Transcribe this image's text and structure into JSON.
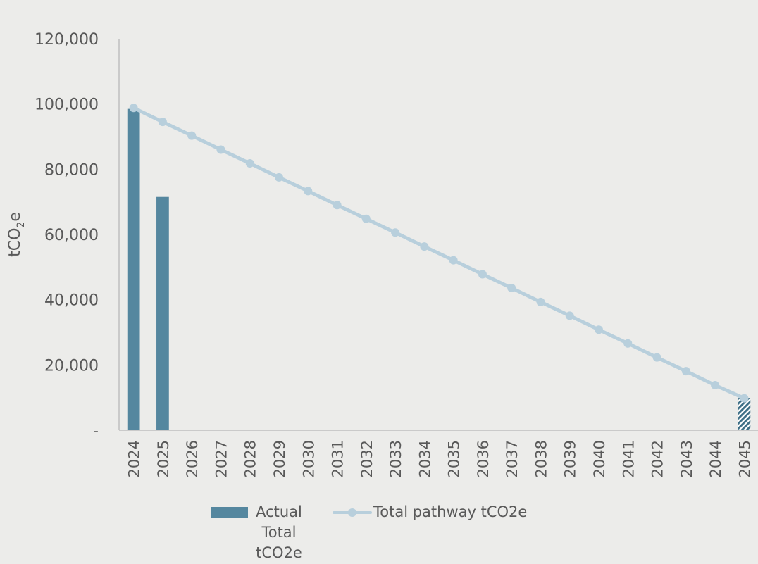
{
  "chart_data": {
    "type": "bar",
    "ylabel": "tCO",
    "ylabel_subscript": "2",
    "ylabel_suffix": "e",
    "ylim": [
      0,
      120000
    ],
    "yticks": [
      {
        "value": 0,
        "label": "-"
      },
      {
        "value": 20000,
        "label": "20,000"
      },
      {
        "value": 40000,
        "label": "40,000"
      },
      {
        "value": 60000,
        "label": "60,000"
      },
      {
        "value": 80000,
        "label": "80,000"
      },
      {
        "value": 100000,
        "label": "100,000"
      },
      {
        "value": 120000,
        "label": "120,000"
      }
    ],
    "categories": [
      "2024",
      "2025",
      "2026",
      "2027",
      "2028",
      "2029",
      "2030",
      "2031",
      "2032",
      "2033",
      "2034",
      "2035",
      "2036",
      "2037",
      "2038",
      "2039",
      "2040",
      "2041",
      "2042",
      "2043",
      "2044",
      "2045"
    ],
    "series": [
      {
        "name": "Actual Total tCO2e",
        "type": "bar",
        "color": "#55879f",
        "values": [
          98500,
          71500,
          null,
          null,
          null,
          null,
          null,
          null,
          null,
          null,
          null,
          null,
          null,
          null,
          null,
          null,
          null,
          null,
          null,
          null,
          null,
          null
        ]
      },
      {
        "name": "",
        "type": "bar-hatched",
        "color": "#3e6f86",
        "values": [
          null,
          null,
          null,
          null,
          null,
          null,
          null,
          null,
          null,
          null,
          null,
          null,
          null,
          null,
          null,
          null,
          null,
          null,
          null,
          null,
          null,
          9900
        ]
      },
      {
        "name": "Total pathway tCO2e",
        "type": "line",
        "color": "#b8cfdc",
        "values": [
          98800,
          94500,
          90300,
          86000,
          81800,
          77500,
          73300,
          69000,
          64800,
          60600,
          56300,
          52100,
          47800,
          43600,
          39300,
          35100,
          30800,
          26600,
          22300,
          18100,
          13800,
          9800
        ]
      }
    ],
    "legend": [
      {
        "label_lines": [
          "Actual",
          "Total",
          "tCO2e"
        ],
        "marker": "bar",
        "color": "#55879f"
      },
      {
        "label_lines": [
          "Total pathway tCO2e"
        ],
        "marker": "line",
        "color": "#b8cfdc"
      }
    ],
    "grid": false,
    "legend_position": "bottom"
  }
}
